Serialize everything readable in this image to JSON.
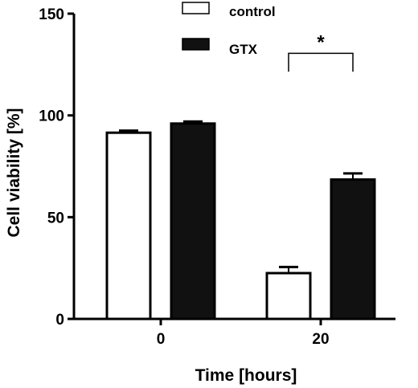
{
  "chart_data": {
    "type": "bar",
    "xlabel": "Time [hours]",
    "ylabel": "Cell viability [%]",
    "categories": [
      "0",
      "20"
    ],
    "ylim": [
      0,
      150
    ],
    "yticks": [
      "0",
      "50",
      "100",
      "150"
    ],
    "grid": false,
    "legend_position": "top-center",
    "series": [
      {
        "name": "control",
        "fill": "#ffffff",
        "values": [
          91.5,
          22.5
        ],
        "errors": [
          1.0,
          3.0
        ]
      },
      {
        "name": "GTX",
        "fill": "#111111",
        "values": [
          96.0,
          68.5
        ],
        "errors": [
          1.0,
          3.0
        ]
      }
    ],
    "annotations": [
      {
        "label": "*",
        "category": "20",
        "between": [
          "control",
          "GTX"
        ]
      }
    ]
  }
}
